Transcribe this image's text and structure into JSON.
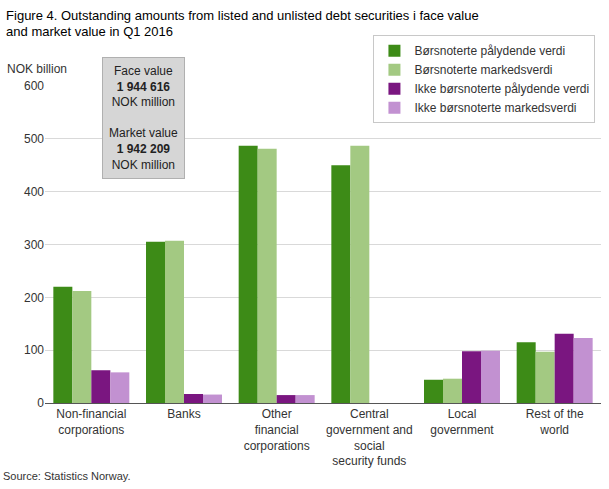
{
  "chart_data": {
    "type": "bar",
    "title": "Figure 4. Outstanding amounts from listed and unlisted debt securities i face value and market value in Q1 2016",
    "y_label": "NOK billion",
    "source": "Source: Statistics Norway.",
    "categories": [
      "Non-financial corporations",
      "Banks",
      "Other financial corporations",
      "Central government and social security funds",
      "Local government",
      "Rest of the world"
    ],
    "series": [
      {
        "name": "Børsnoterte pålydende verdi",
        "color": "#3d8b17",
        "values": [
          220,
          305,
          487,
          450,
          44,
          115
        ]
      },
      {
        "name": "Børsnoterte markedsverdi",
        "color": "#a3c982",
        "values": [
          212,
          307,
          481,
          487,
          46,
          97
        ]
      },
      {
        "name": "Ikke børsnoterte pålydende verdi",
        "color": "#7a1680",
        "values": [
          62,
          17,
          15,
          null,
          98,
          131
        ]
      },
      {
        "name": "Ikke børsnoterte markedsverdi",
        "color": "#c291d1",
        "values": [
          58,
          16,
          15,
          null,
          99,
          123
        ]
      }
    ],
    "annotation": [
      "Face value",
      "1 944 616",
      "NOK million",
      "Market value",
      "1 942 209",
      "NOK million"
    ],
    "ylim": [
      0,
      600
    ],
    "yticks": [
      0,
      100,
      200,
      300,
      400,
      500,
      600
    ],
    "grid": true,
    "legend": "top right"
  }
}
